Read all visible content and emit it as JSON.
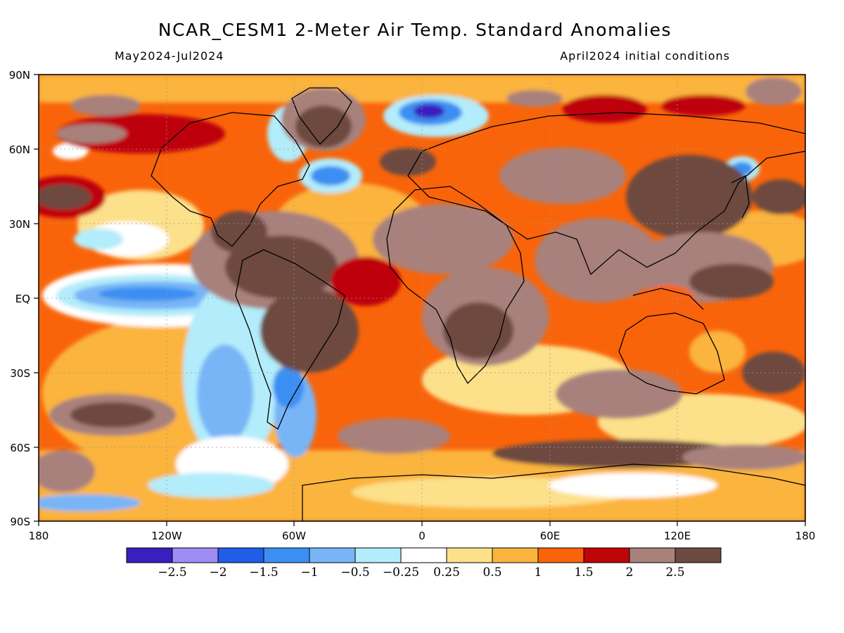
{
  "title": "NCAR_CESM1 2-Meter Air Temp. Standard Anomalies",
  "period": "May2024-Jul2024",
  "initial": "April2024 initial conditions",
  "lat_labels": [
    "90N",
    "60N",
    "30N",
    "EQ",
    "30S",
    "60S",
    "90S"
  ],
  "lon_labels": [
    "180",
    "120W",
    "60W",
    "0",
    "60E",
    "120E",
    "180"
  ],
  "legend": {
    "colors": [
      "#3a1ebe",
      "#9f8cf5",
      "#1f5ee6",
      "#3b8ff2",
      "#77b5f7",
      "#b3ecfa",
      "#ffffff",
      "#fde08a",
      "#fbb43e",
      "#f9640a",
      "#be0508",
      "#a8817b",
      "#6d4a41"
    ],
    "labels": [
      "-2.5",
      "-2",
      "-1.5",
      "-1",
      "-0.5",
      "-0.25",
      "0.25",
      "0.5",
      "1",
      "1.5",
      "2",
      "2.5"
    ]
  }
}
